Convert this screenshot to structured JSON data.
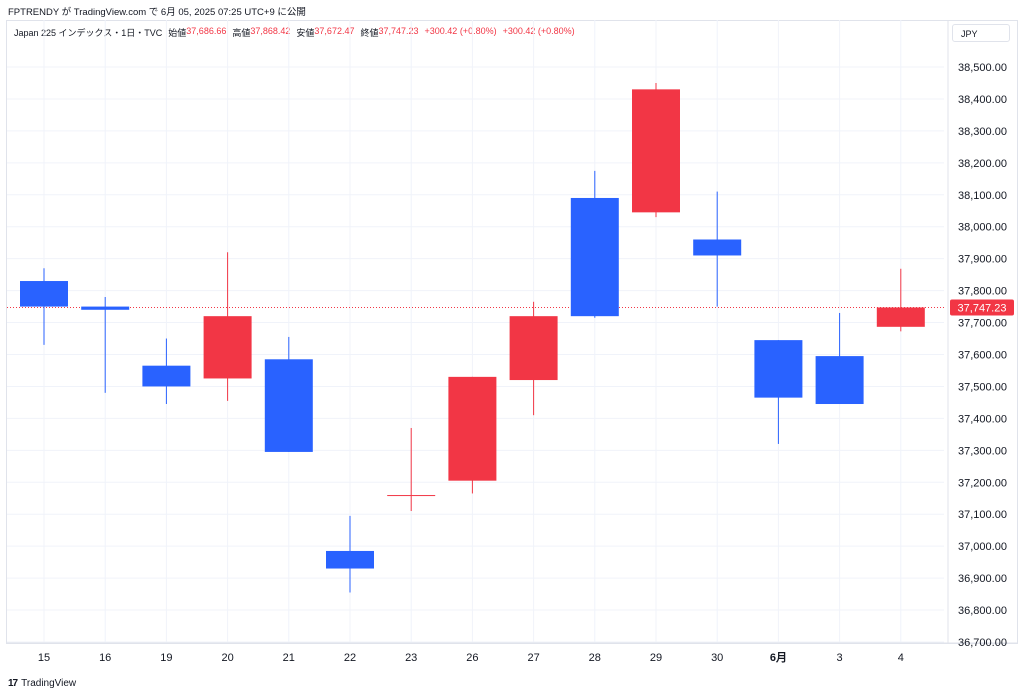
{
  "caption": "FPTRENDY が TradingView.com で 6月 05, 2025 07:25 UTC+9 に公開",
  "legend": {
    "symbol": "Japan 225 インデックス・1日・TVC",
    "open_label": "始値",
    "open": "37,686.66",
    "high_label": "高値",
    "high": "37,868.42",
    "low_label": "安値",
    "low": "37,672.47",
    "close_label": "終値",
    "close": "37,747.23",
    "change1": "+300.42 (+0.80%)",
    "change2": "+300.42 (+0.80%)"
  },
  "currency": "JPY",
  "footer": {
    "mark": "17",
    "brand": "TradingView"
  },
  "colors": {
    "up": "#f23645",
    "down": "#2962ff",
    "grid": "#f0f3fa",
    "price_line": "#f23645",
    "text": "#131722"
  },
  "chart_data": {
    "type": "candlestick",
    "ylim": [
      36700,
      38570
    ],
    "y_ticks": [
      "38,500.00",
      "38,400.00",
      "38,300.00",
      "38,200.00",
      "38,100.00",
      "38,000.00",
      "37,900.00",
      "37,800.00",
      "37,700.00",
      "37,600.00",
      "37,500.00",
      "37,400.00",
      "37,300.00",
      "37,200.00",
      "37,100.00",
      "37,000.00",
      "36,900.00",
      "36,800.00",
      "36,700.00"
    ],
    "y_tick_values": [
      38500,
      38400,
      38300,
      38200,
      38100,
      38000,
      37900,
      37800,
      37700,
      37600,
      37500,
      37400,
      37300,
      37200,
      37100,
      37000,
      36900,
      36800,
      36700
    ],
    "categories": [
      "15",
      "16",
      "19",
      "20",
      "21",
      "22",
      "23",
      "26",
      "27",
      "28",
      "29",
      "30",
      "6月",
      "3",
      "4"
    ],
    "bold_categories": [
      "6月"
    ],
    "candles": [
      {
        "open": 37830,
        "high": 37870,
        "low": 37630,
        "close": 37750
      },
      {
        "open": 37750,
        "high": 37780,
        "low": 37480,
        "close": 37740
      },
      {
        "open": 37565,
        "high": 37650,
        "low": 37445,
        "close": 37500
      },
      {
        "open": 37525,
        "high": 37920,
        "low": 37455,
        "close": 37720
      },
      {
        "open": 37585,
        "high": 37655,
        "low": 37295,
        "close": 37295
      },
      {
        "open": 36985,
        "high": 37095,
        "low": 36855,
        "close": 36930
      },
      {
        "open": 37160,
        "high": 37370,
        "low": 37110,
        "close": 37160
      },
      {
        "open": 37205,
        "high": 37530,
        "low": 37165,
        "close": 37530
      },
      {
        "open": 37520,
        "high": 37765,
        "low": 37410,
        "close": 37720
      },
      {
        "open": 38090,
        "high": 38175,
        "low": 37715,
        "close": 37720
      },
      {
        "open": 38045,
        "high": 38450,
        "low": 38030,
        "close": 38430
      },
      {
        "open": 37960,
        "high": 38110,
        "low": 37750,
        "close": 37910
      },
      {
        "open": 37645,
        "high": 37645,
        "low": 37320,
        "close": 37465
      },
      {
        "open": 37595,
        "high": 37730,
        "low": 37445,
        "close": 37445
      },
      {
        "open": 37686.66,
        "high": 37868.42,
        "low": 37672.47,
        "close": 37747.23
      }
    ],
    "last_price": 37747.23,
    "last_price_label": "37,747.23"
  }
}
